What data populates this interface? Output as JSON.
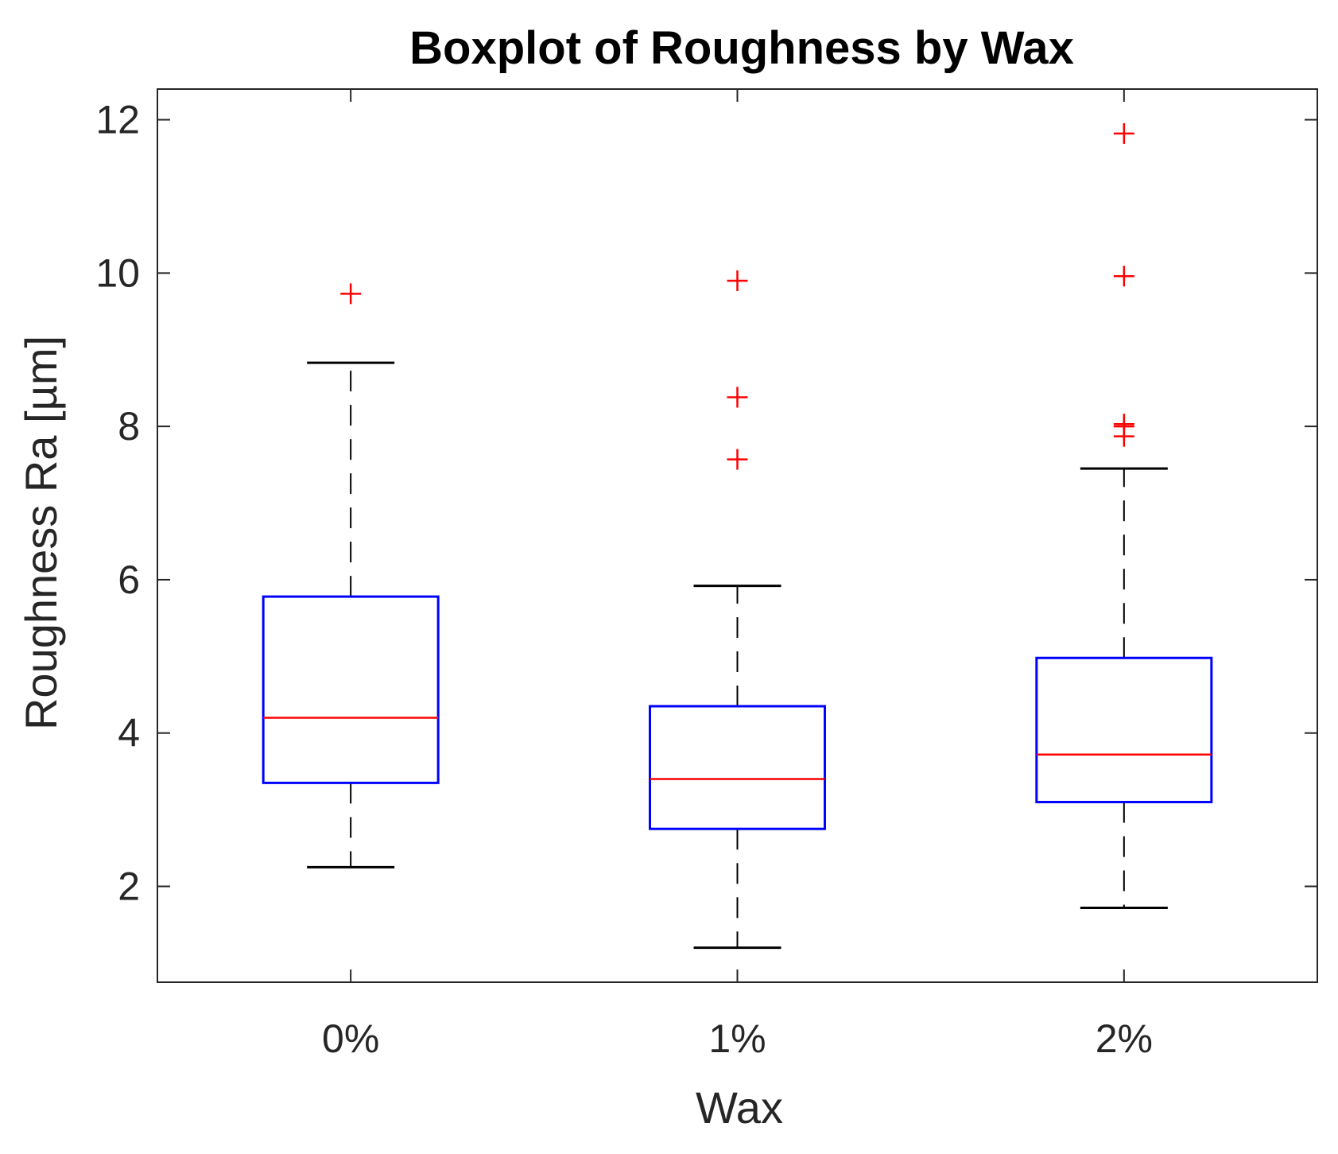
{
  "chart_data": {
    "type": "boxplot",
    "title": "Boxplot of Roughness by Wax",
    "xlabel": "Wax",
    "ylabel": "Roughness Ra [µm]",
    "categories": [
      "0%",
      "1%",
      "2%"
    ],
    "ylim": [
      0.75,
      12.4
    ],
    "yticks": [
      2,
      4,
      6,
      8,
      10,
      12
    ],
    "grid": false,
    "boxes": [
      {
        "category": "0%",
        "whisker_low": 2.25,
        "q1": 3.35,
        "median": 4.2,
        "q3": 5.78,
        "whisker_high": 8.83,
        "outliers": [
          9.73
        ]
      },
      {
        "category": "1%",
        "whisker_low": 1.2,
        "q1": 2.75,
        "median": 3.4,
        "q3": 4.35,
        "whisker_high": 5.92,
        "outliers": [
          9.9,
          8.38,
          7.57
        ]
      },
      {
        "category": "2%",
        "whisker_low": 1.72,
        "q1": 3.1,
        "median": 3.72,
        "q3": 4.98,
        "whisker_high": 7.45,
        "outliers": [
          11.82,
          9.96,
          8.03,
          8.0,
          7.87
        ]
      }
    ],
    "colors": {
      "box": "#0000ff",
      "median": "#ff0000",
      "outlier": "#ff0000",
      "whisker": "#000000",
      "axis": "#262626"
    }
  }
}
